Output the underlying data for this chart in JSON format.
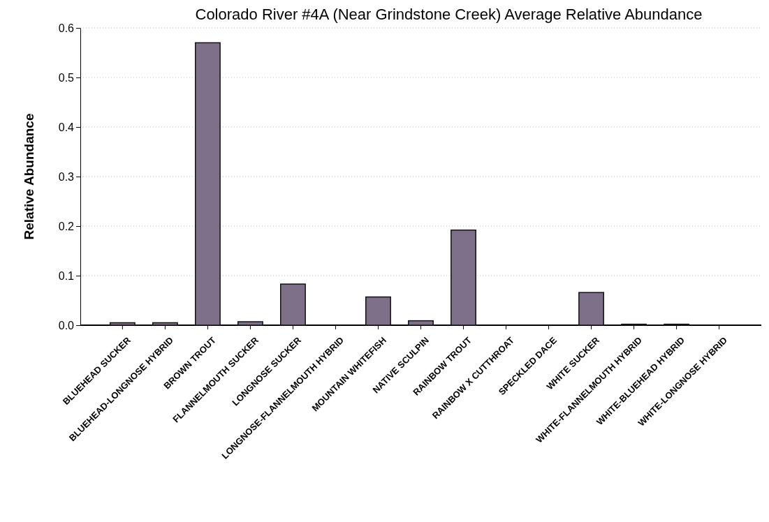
{
  "chart_data": {
    "type": "bar",
    "title": "Colorado River #4A (Near Grindstone Creek) Average Relative Abundance",
    "ylabel": "Relative Abundance",
    "categories": [
      "BLUEHEAD SUCKER",
      "BLUEHEAD-LONGNOSE HYBRID",
      "BROWN TROUT",
      "FLANNELMOUTH SUCKER",
      "LONGNOSE SUCKER",
      "LONGNOSE-FLANNELMOUTH HYBRID",
      "MOUNTAIN WHITEFISH",
      "NATIVE SCULPIN",
      "RAINBOW TROUT",
      "RAINBOW X CUTTHROAT",
      "SPECKLED DACE",
      "WHITE SUCKER",
      "WHITE-FLANNELMOUTH HYBRID",
      "WHITE-BLUEHEAD HYBRID",
      "WHITE-LONGNOSE HYBRID"
    ],
    "values": [
      0.005,
      0.005,
      0.57,
      0.007,
      0.083,
      0,
      0.057,
      0.009,
      0.192,
      0,
      0,
      0.066,
      0.002,
      0.002,
      0
    ],
    "color": "#7f7089",
    "ylim": [
      0,
      0.6
    ],
    "yticks": [
      {
        "value": 0,
        "label": "0.0"
      },
      {
        "value": 0.1,
        "label": "0.1"
      },
      {
        "value": 0.2,
        "label": "0.2"
      },
      {
        "value": 0.3,
        "label": "0.3"
      },
      {
        "value": 0.4,
        "label": "0.4"
      },
      {
        "value": 0.5,
        "label": "0.5"
      },
      {
        "value": 0.6,
        "label": "0.6"
      }
    ],
    "grid": "y"
  }
}
